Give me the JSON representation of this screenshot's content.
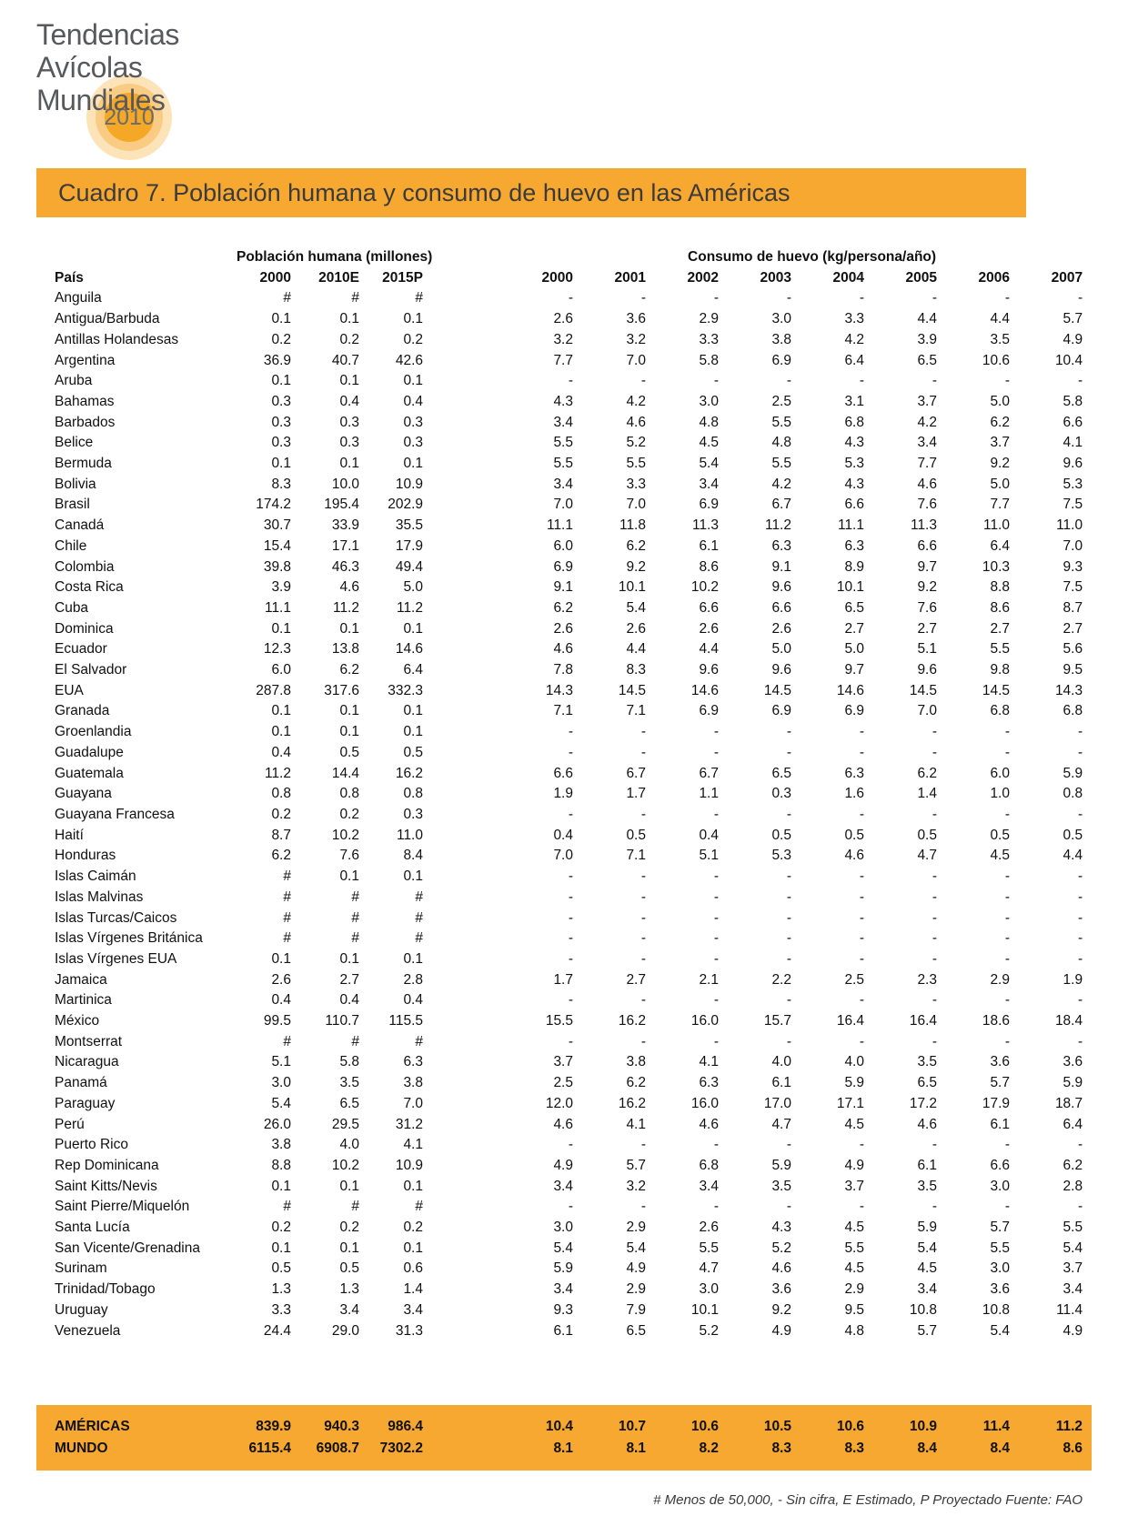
{
  "colors": {
    "accent_orange": "#F6A831",
    "logo_ring_outer": "#FCE4B8",
    "logo_ring_mid": "#FACC83",
    "logo_ring_inner": "#F5A826"
  },
  "logo": {
    "line1": "Tendencias",
    "line2": "Avícolas",
    "line3": "Mundiales",
    "year": "2010"
  },
  "title": "Cuadro 7. Población humana y consumo de huevo en las Américas",
  "table": {
    "group_headers": {
      "population": "Población humana (millones)",
      "consumption": "Consumo de huevo (kg/persona/año)"
    },
    "country_header": "País",
    "population_years": [
      "2000",
      "2010E",
      "2015P"
    ],
    "consumption_years": [
      "2000",
      "2001",
      "2002",
      "2003",
      "2004",
      "2005",
      "2006",
      "2007"
    ],
    "rows": [
      {
        "country": "Anguila",
        "population": [
          "#",
          "#",
          "#"
        ],
        "consumption": [
          "-",
          "-",
          "-",
          "-",
          "-",
          "-",
          "-",
          "-"
        ]
      },
      {
        "country": "Antigua/Barbuda",
        "population": [
          "0.1",
          "0.1",
          "0.1"
        ],
        "consumption": [
          "2.6",
          "3.6",
          "2.9",
          "3.0",
          "3.3",
          "4.4",
          "4.4",
          "5.7"
        ]
      },
      {
        "country": "Antillas Holandesas",
        "population": [
          "0.2",
          "0.2",
          "0.2"
        ],
        "consumption": [
          "3.2",
          "3.2",
          "3.3",
          "3.8",
          "4.2",
          "3.9",
          "3.5",
          "4.9"
        ]
      },
      {
        "country": "Argentina",
        "population": [
          "36.9",
          "40.7",
          "42.6"
        ],
        "consumption": [
          "7.7",
          "7.0",
          "5.8",
          "6.9",
          "6.4",
          "6.5",
          "10.6",
          "10.4"
        ]
      },
      {
        "country": "Aruba",
        "population": [
          "0.1",
          "0.1",
          "0.1"
        ],
        "consumption": [
          "-",
          "-",
          "-",
          "-",
          "-",
          "-",
          "-",
          "-"
        ]
      },
      {
        "country": "Bahamas",
        "population": [
          "0.3",
          "0.4",
          "0.4"
        ],
        "consumption": [
          "4.3",
          "4.2",
          "3.0",
          "2.5",
          "3.1",
          "3.7",
          "5.0",
          "5.8"
        ]
      },
      {
        "country": "Barbados",
        "population": [
          "0.3",
          "0.3",
          "0.3"
        ],
        "consumption": [
          "3.4",
          "4.6",
          "4.8",
          "5.5",
          "6.8",
          "4.2",
          "6.2",
          "6.6"
        ]
      },
      {
        "country": "Belice",
        "population": [
          "0.3",
          "0.3",
          "0.3"
        ],
        "consumption": [
          "5.5",
          "5.2",
          "4.5",
          "4.8",
          "4.3",
          "3.4",
          "3.7",
          "4.1"
        ]
      },
      {
        "country": "Bermuda",
        "population": [
          "0.1",
          "0.1",
          "0.1"
        ],
        "consumption": [
          "5.5",
          "5.5",
          "5.4",
          "5.5",
          "5.3",
          "7.7",
          "9.2",
          "9.6"
        ]
      },
      {
        "country": "Bolivia",
        "population": [
          "8.3",
          "10.0",
          "10.9"
        ],
        "consumption": [
          "3.4",
          "3.3",
          "3.4",
          "4.2",
          "4.3",
          "4.6",
          "5.0",
          "5.3"
        ]
      },
      {
        "country": "Brasil",
        "population": [
          "174.2",
          "195.4",
          "202.9"
        ],
        "consumption": [
          "7.0",
          "7.0",
          "6.9",
          "6.7",
          "6.6",
          "7.6",
          "7.7",
          "7.5"
        ]
      },
      {
        "country": "Canadá",
        "population": [
          "30.7",
          "33.9",
          "35.5"
        ],
        "consumption": [
          "11.1",
          "11.8",
          "11.3",
          "11.2",
          "11.1",
          "11.3",
          "11.0",
          "11.0"
        ]
      },
      {
        "country": "Chile",
        "population": [
          "15.4",
          "17.1",
          "17.9"
        ],
        "consumption": [
          "6.0",
          "6.2",
          "6.1",
          "6.3",
          "6.3",
          "6.6",
          "6.4",
          "7.0"
        ]
      },
      {
        "country": "Colombia",
        "population": [
          "39.8",
          "46.3",
          "49.4"
        ],
        "consumption": [
          "6.9",
          "9.2",
          "8.6",
          "9.1",
          "8.9",
          "9.7",
          "10.3",
          "9.3"
        ]
      },
      {
        "country": "Costa Rica",
        "population": [
          "3.9",
          "4.6",
          "5.0"
        ],
        "consumption": [
          "9.1",
          "10.1",
          "10.2",
          "9.6",
          "10.1",
          "9.2",
          "8.8",
          "7.5"
        ]
      },
      {
        "country": "Cuba",
        "population": [
          "11.1",
          "11.2",
          "11.2"
        ],
        "consumption": [
          "6.2",
          "5.4",
          "6.6",
          "6.6",
          "6.5",
          "7.6",
          "8.6",
          "8.7"
        ]
      },
      {
        "country": "Dominica",
        "population": [
          "0.1",
          "0.1",
          "0.1"
        ],
        "consumption": [
          "2.6",
          "2.6",
          "2.6",
          "2.6",
          "2.7",
          "2.7",
          "2.7",
          "2.7"
        ]
      },
      {
        "country": "Ecuador",
        "population": [
          "12.3",
          "13.8",
          "14.6"
        ],
        "consumption": [
          "4.6",
          "4.4",
          "4.4",
          "5.0",
          "5.0",
          "5.1",
          "5.5",
          "5.6"
        ]
      },
      {
        "country": "El Salvador",
        "population": [
          "6.0",
          "6.2",
          "6.4"
        ],
        "consumption": [
          "7.8",
          "8.3",
          "9.6",
          "9.6",
          "9.7",
          "9.6",
          "9.8",
          "9.5"
        ]
      },
      {
        "country": "EUA",
        "population": [
          "287.8",
          "317.6",
          "332.3"
        ],
        "consumption": [
          "14.3",
          "14.5",
          "14.6",
          "14.5",
          "14.6",
          "14.5",
          "14.5",
          "14.3"
        ]
      },
      {
        "country": "Granada",
        "population": [
          "0.1",
          "0.1",
          "0.1"
        ],
        "consumption": [
          "7.1",
          "7.1",
          "6.9",
          "6.9",
          "6.9",
          "7.0",
          "6.8",
          "6.8"
        ]
      },
      {
        "country": "Groenlandia",
        "population": [
          "0.1",
          "0.1",
          "0.1"
        ],
        "consumption": [
          "-",
          "-",
          "-",
          "-",
          "-",
          "-",
          "-",
          "-"
        ]
      },
      {
        "country": "Guadalupe",
        "population": [
          "0.4",
          "0.5",
          "0.5"
        ],
        "consumption": [
          "-",
          "-",
          "-",
          "-",
          "-",
          "-",
          "-",
          "-"
        ]
      },
      {
        "country": "Guatemala",
        "population": [
          "11.2",
          "14.4",
          "16.2"
        ],
        "consumption": [
          "6.6",
          "6.7",
          "6.7",
          "6.5",
          "6.3",
          "6.2",
          "6.0",
          "5.9"
        ]
      },
      {
        "country": "Guayana",
        "population": [
          "0.8",
          "0.8",
          "0.8"
        ],
        "consumption": [
          "1.9",
          "1.7",
          "1.1",
          "0.3",
          "1.6",
          "1.4",
          "1.0",
          "0.8"
        ]
      },
      {
        "country": "Guayana Francesa",
        "population": [
          "0.2",
          "0.2",
          "0.3"
        ],
        "consumption": [
          "-",
          "-",
          "-",
          "-",
          "-",
          "-",
          "-",
          "-"
        ]
      },
      {
        "country": "Haití",
        "population": [
          "8.7",
          "10.2",
          "11.0"
        ],
        "consumption": [
          "0.4",
          "0.5",
          "0.4",
          "0.5",
          "0.5",
          "0.5",
          "0.5",
          "0.5"
        ]
      },
      {
        "country": "Honduras",
        "population": [
          "6.2",
          "7.6",
          "8.4"
        ],
        "consumption": [
          "7.0",
          "7.1",
          "5.1",
          "5.3",
          "4.6",
          "4.7",
          "4.5",
          "4.4"
        ]
      },
      {
        "country": "Islas Caimán",
        "population": [
          "#",
          "0.1",
          "0.1"
        ],
        "consumption": [
          "-",
          "-",
          "-",
          "-",
          "-",
          "-",
          "-",
          "-"
        ]
      },
      {
        "country": "Islas Malvinas",
        "population": [
          "#",
          "#",
          "#"
        ],
        "consumption": [
          "-",
          "-",
          "-",
          "-",
          "-",
          "-",
          "-",
          "-"
        ]
      },
      {
        "country": "Islas Turcas/Caicos",
        "population": [
          "#",
          "#",
          "#"
        ],
        "consumption": [
          "-",
          "-",
          "-",
          "-",
          "-",
          "-",
          "-",
          "-"
        ]
      },
      {
        "country": "Islas Vírgenes Británica",
        "population": [
          "#",
          "#",
          "#"
        ],
        "consumption": [
          "-",
          "-",
          "-",
          "-",
          "-",
          "-",
          "-",
          "-"
        ]
      },
      {
        "country": "Islas Vírgenes EUA",
        "population": [
          "0.1",
          "0.1",
          "0.1"
        ],
        "consumption": [
          "-",
          "-",
          "-",
          "-",
          "-",
          "-",
          "-",
          "-"
        ]
      },
      {
        "country": "Jamaica",
        "population": [
          "2.6",
          "2.7",
          "2.8"
        ],
        "consumption": [
          "1.7",
          "2.7",
          "2.1",
          "2.2",
          "2.5",
          "2.3",
          "2.9",
          "1.9"
        ]
      },
      {
        "country": "Martinica",
        "population": [
          "0.4",
          "0.4",
          "0.4"
        ],
        "consumption": [
          "-",
          "-",
          "-",
          "-",
          "-",
          "-",
          "-",
          "-"
        ]
      },
      {
        "country": "México",
        "population": [
          "99.5",
          "110.7",
          "115.5"
        ],
        "consumption": [
          "15.5",
          "16.2",
          "16.0",
          "15.7",
          "16.4",
          "16.4",
          "18.6",
          "18.4"
        ]
      },
      {
        "country": "Montserrat",
        "population": [
          "#",
          "#",
          "#"
        ],
        "consumption": [
          "-",
          "-",
          "-",
          "-",
          "-",
          "-",
          "-",
          "-"
        ]
      },
      {
        "country": "Nicaragua",
        "population": [
          "5.1",
          "5.8",
          "6.3"
        ],
        "consumption": [
          "3.7",
          "3.8",
          "4.1",
          "4.0",
          "4.0",
          "3.5",
          "3.6",
          "3.6"
        ]
      },
      {
        "country": "Panamá",
        "population": [
          "3.0",
          "3.5",
          "3.8"
        ],
        "consumption": [
          "2.5",
          "6.2",
          "6.3",
          "6.1",
          "5.9",
          "6.5",
          "5.7",
          "5.9"
        ]
      },
      {
        "country": "Paraguay",
        "population": [
          "5.4",
          "6.5",
          "7.0"
        ],
        "consumption": [
          "12.0",
          "16.2",
          "16.0",
          "17.0",
          "17.1",
          "17.2",
          "17.9",
          "18.7"
        ]
      },
      {
        "country": "Perú",
        "population": [
          "26.0",
          "29.5",
          "31.2"
        ],
        "consumption": [
          "4.6",
          "4.1",
          "4.6",
          "4.7",
          "4.5",
          "4.6",
          "6.1",
          "6.4"
        ]
      },
      {
        "country": "Puerto Rico",
        "population": [
          "3.8",
          "4.0",
          "4.1"
        ],
        "consumption": [
          "-",
          "-",
          "-",
          "-",
          "-",
          "-",
          "-",
          "-"
        ]
      },
      {
        "country": "Rep Dominicana",
        "population": [
          "8.8",
          "10.2",
          "10.9"
        ],
        "consumption": [
          "4.9",
          "5.7",
          "6.8",
          "5.9",
          "4.9",
          "6.1",
          "6.6",
          "6.2"
        ]
      },
      {
        "country": "Saint Kitts/Nevis",
        "population": [
          "0.1",
          "0.1",
          "0.1"
        ],
        "consumption": [
          "3.4",
          "3.2",
          "3.4",
          "3.5",
          "3.7",
          "3.5",
          "3.0",
          "2.8"
        ]
      },
      {
        "country": "Saint Pierre/Miquelón",
        "population": [
          "#",
          "#",
          "#"
        ],
        "consumption": [
          "-",
          "-",
          "-",
          "-",
          "-",
          "-",
          "-",
          "-"
        ]
      },
      {
        "country": "Santa Lucía",
        "population": [
          "0.2",
          "0.2",
          "0.2"
        ],
        "consumption": [
          "3.0",
          "2.9",
          "2.6",
          "4.3",
          "4.5",
          "5.9",
          "5.7",
          "5.5"
        ]
      },
      {
        "country": "San Vicente/Grenadina",
        "population": [
          "0.1",
          "0.1",
          "0.1"
        ],
        "consumption": [
          "5.4",
          "5.4",
          "5.5",
          "5.2",
          "5.5",
          "5.4",
          "5.5",
          "5.4"
        ]
      },
      {
        "country": "Surinam",
        "population": [
          "0.5",
          "0.5",
          "0.6"
        ],
        "consumption": [
          "5.9",
          "4.9",
          "4.7",
          "4.6",
          "4.5",
          "4.5",
          "3.0",
          "3.7"
        ]
      },
      {
        "country": "Trinidad/Tobago",
        "population": [
          "1.3",
          "1.3",
          "1.4"
        ],
        "consumption": [
          "3.4",
          "2.9",
          "3.0",
          "3.6",
          "2.9",
          "3.4",
          "3.6",
          "3.4"
        ]
      },
      {
        "country": "Uruguay",
        "population": [
          "3.3",
          "3.4",
          "3.4"
        ],
        "consumption": [
          "9.3",
          "7.9",
          "10.1",
          "9.2",
          "9.5",
          "10.8",
          "10.8",
          "11.4"
        ]
      },
      {
        "country": "Venezuela",
        "population": [
          "24.4",
          "29.0",
          "31.3"
        ],
        "consumption": [
          "6.1",
          "6.5",
          "5.2",
          "4.9",
          "4.8",
          "5.7",
          "5.4",
          "4.9"
        ]
      }
    ],
    "summary_rows": [
      {
        "country": "AMÉRICAS",
        "population": [
          "839.9",
          "940.3",
          "986.4"
        ],
        "consumption": [
          "10.4",
          "10.7",
          "10.6",
          "10.5",
          "10.6",
          "10.9",
          "11.4",
          "11.2"
        ]
      },
      {
        "country": "MUNDO",
        "population": [
          "6115.4",
          "6908.7",
          "7302.2"
        ],
        "consumption": [
          "8.1",
          "8.1",
          "8.2",
          "8.3",
          "8.3",
          "8.4",
          "8.4",
          "8.6"
        ]
      }
    ]
  },
  "footnote": "# Menos de 50,000, - Sin cifra, E Estimado, P Proyectado Fuente: FAO"
}
